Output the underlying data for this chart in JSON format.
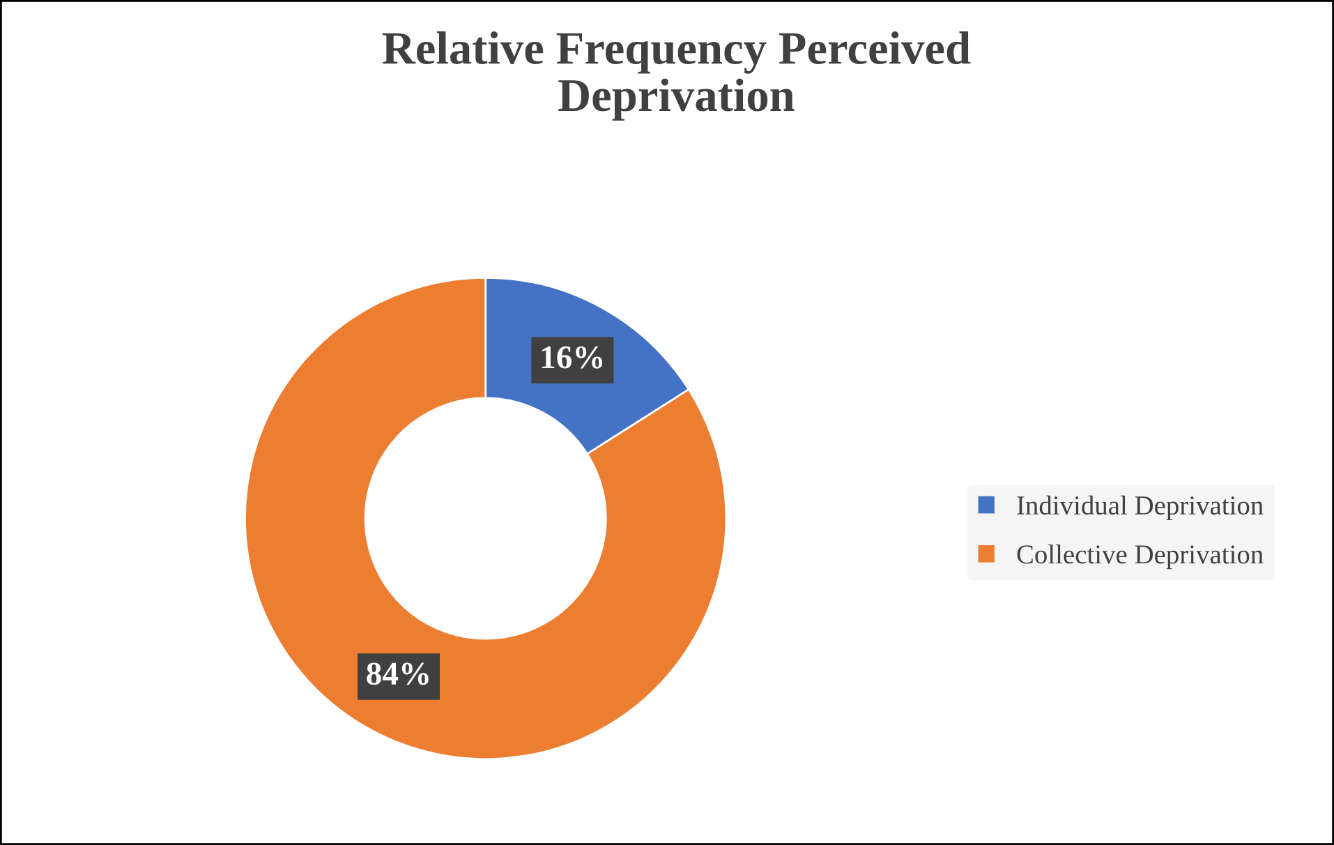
{
  "chart_data": {
    "type": "donut",
    "title": "Relative Frequency Perceived\nDeprivation",
    "categories": [
      "Individual Deprivation",
      "Collective Deprivation"
    ],
    "values": [
      16,
      84
    ],
    "colors": [
      "#4472c4",
      "#ed7d31"
    ],
    "value_labels": [
      "16%",
      "84%"
    ],
    "legend": "right"
  }
}
